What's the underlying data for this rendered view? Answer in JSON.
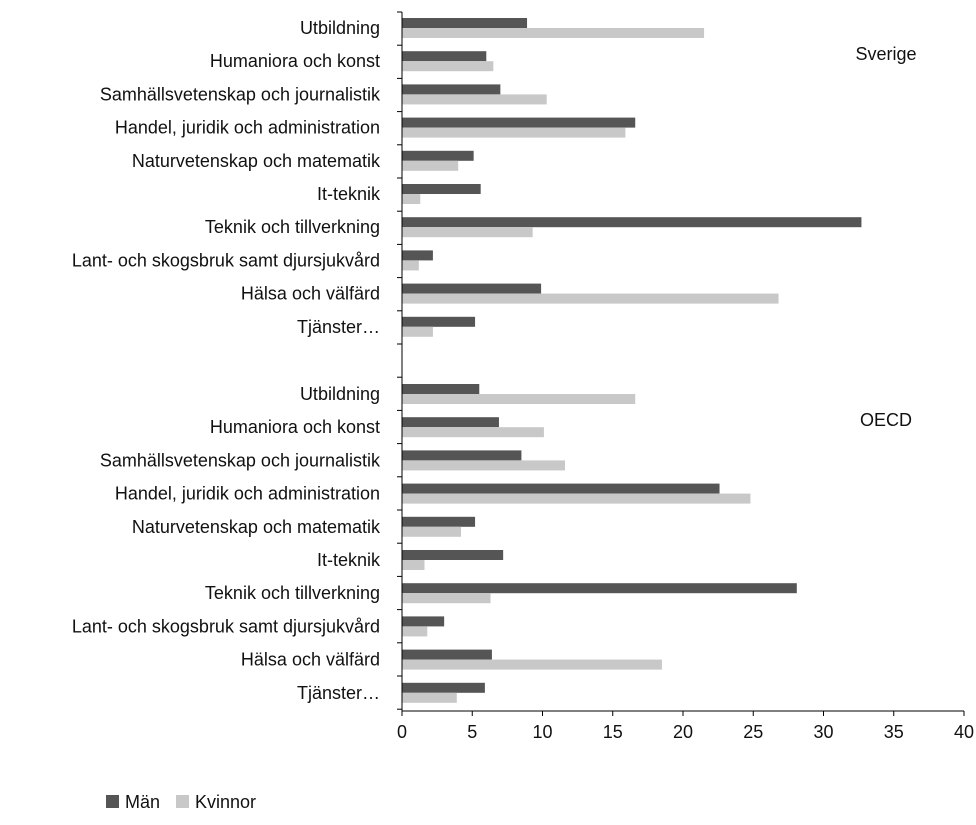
{
  "chart_data": {
    "type": "bar",
    "orientation": "horizontal",
    "xlim": [
      0,
      40
    ],
    "xticks": [
      0,
      5,
      10,
      15,
      20,
      25,
      30,
      35,
      40
    ],
    "xlabel": "",
    "ylabel": "",
    "title": "",
    "grid": false,
    "legend_placement": "bottom-left",
    "colors": {
      "Män": "#555555",
      "Kvinnor": "#c8c8c8"
    },
    "categories": [
      "Utbildning",
      "Humaniora och konst",
      "Samhällsvetenskap och journalistik",
      "Handel, juridik och administration",
      "Naturvetenskap och matematik",
      "It-teknik",
      "Teknik och tillverkning",
      "Lant- och skogsbruk samt djursjukvård",
      "Hälsa och välfärd",
      "Tjänster…"
    ],
    "panels": [
      {
        "label": "Sverige",
        "series": [
          {
            "name": "Män",
            "values": [
              8.9,
              6.0,
              7.0,
              16.6,
              5.1,
              5.6,
              32.7,
              2.2,
              9.9,
              5.2
            ]
          },
          {
            "name": "Kvinnor",
            "values": [
              21.5,
              6.5,
              10.3,
              15.9,
              4.0,
              1.3,
              9.3,
              1.2,
              26.8,
              2.2
            ]
          }
        ]
      },
      {
        "label": "OECD",
        "series": [
          {
            "name": "Män",
            "values": [
              5.5,
              6.9,
              8.5,
              22.6,
              5.2,
              7.2,
              28.1,
              3.0,
              6.4,
              5.9
            ]
          },
          {
            "name": "Kvinnor",
            "values": [
              16.6,
              10.1,
              11.6,
              24.8,
              4.2,
              1.6,
              6.3,
              1.8,
              18.5,
              3.9
            ]
          }
        ]
      }
    ]
  }
}
